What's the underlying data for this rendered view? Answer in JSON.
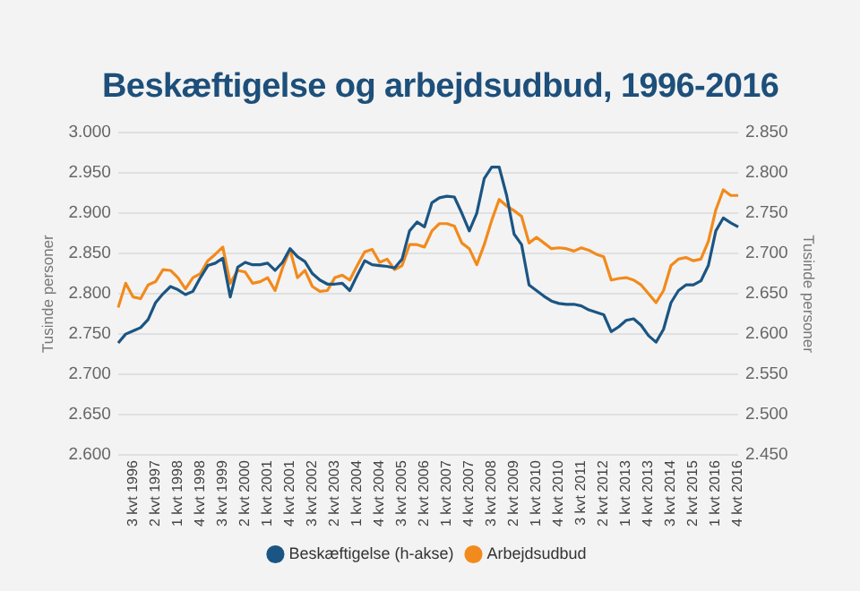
{
  "chart_data": {
    "type": "line",
    "title": "Beskæftigelse og arbejdsudbud, 1996-2016",
    "ylabel": "Tusinde personer",
    "y2label": "Tusinde personer",
    "categories": [
      null,
      null,
      "3 kvt 1996",
      null,
      null,
      "2 kvt 1997",
      null,
      null,
      "1 kvt 1998",
      null,
      null,
      "4 kvt 1998",
      null,
      null,
      "3 kvt 1999",
      null,
      null,
      "2 kvt 2000",
      null,
      null,
      "1 kvt 2001",
      null,
      null,
      "4 kvt 2001",
      null,
      null,
      "3 kvt 2002",
      null,
      null,
      "2 kvt 2003",
      null,
      null,
      "1 kvt 2004",
      null,
      null,
      "4 kvt 2004",
      null,
      null,
      "3 kvt 2005",
      null,
      null,
      "2 kvt 2006",
      null,
      null,
      "1 kvt 2007",
      null,
      null,
      "4 kvt 2007",
      null,
      null,
      "3 kvt 2008",
      null,
      null,
      "2 kvt 2009",
      null,
      null,
      "1 kvt 2010",
      null,
      null,
      "4 kvt 2010",
      null,
      null,
      "3 kvt 2011",
      null,
      null,
      "2 kvt 2012",
      null,
      null,
      "1 kvt 2013",
      null,
      null,
      "4 kvt 2013",
      null,
      null,
      "3 kvt 2014",
      null,
      null,
      "2 kvt 2015",
      null,
      null,
      "1 kvt 2016",
      null,
      null,
      "4 kvt 2016"
    ],
    "series": [
      {
        "name": "Beskæftigelse (h-akse)",
        "color": "#1b5583",
        "axis": "y2",
        "values": [
          2589,
          2600,
          2604,
          2608,
          2618,
          2639,
          2650,
          2659,
          2655,
          2649,
          2653,
          2670,
          2685,
          2688,
          2694,
          2646,
          2683,
          2689,
          2686,
          2686,
          2688,
          2679,
          2689,
          2706,
          2696,
          2690,
          2675,
          2667,
          2662,
          2662,
          2663,
          2654,
          2673,
          2691,
          2686,
          2685,
          2684,
          2682,
          2693,
          2728,
          2739,
          2733,
          2763,
          2769,
          2771,
          2770,
          2750,
          2728,
          2750,
          2793,
          2807,
          2807,
          2772,
          2724,
          2711,
          2661,
          2654,
          2647,
          2641,
          2638,
          2637,
          2637,
          2635,
          2630,
          2627,
          2624,
          2603,
          2609,
          2617,
          2619,
          2611,
          2598,
          2590,
          2606,
          2639,
          2654,
          2661,
          2661,
          2666,
          2685,
          2728,
          2744,
          2738,
          2733
        ]
      },
      {
        "name": "Arbejdsudbud",
        "color": "#f28a1c",
        "axis": "y",
        "values": [
          2783,
          2813,
          2796,
          2794,
          2811,
          2815,
          2830,
          2829,
          2820,
          2806,
          2820,
          2825,
          2841,
          2849,
          2858,
          2813,
          2829,
          2827,
          2813,
          2815,
          2820,
          2804,
          2832,
          2855,
          2820,
          2829,
          2809,
          2803,
          2804,
          2820,
          2823,
          2817,
          2835,
          2852,
          2855,
          2839,
          2843,
          2830,
          2835,
          2861,
          2861,
          2858,
          2878,
          2887,
          2887,
          2884,
          2863,
          2856,
          2836,
          2861,
          2891,
          2917,
          2909,
          2903,
          2896,
          2863,
          2870,
          2863,
          2856,
          2857,
          2856,
          2853,
          2857,
          2854,
          2849,
          2846,
          2817,
          2819,
          2820,
          2817,
          2811,
          2800,
          2789,
          2804,
          2835,
          2843,
          2845,
          2841,
          2843,
          2865,
          2904,
          2929,
          2922,
          2922
        ]
      }
    ],
    "ylim": [
      2600,
      3000
    ],
    "yticks": [
      {
        "value": 2600,
        "label": "2.600"
      },
      {
        "value": 2650,
        "label": "2.650"
      },
      {
        "value": 2700,
        "label": "2.700"
      },
      {
        "value": 2750,
        "label": "2.750"
      },
      {
        "value": 2800,
        "label": "2.800"
      },
      {
        "value": 2850,
        "label": "2.850"
      },
      {
        "value": 2900,
        "label": "2.900"
      },
      {
        "value": 2950,
        "label": "2.950"
      },
      {
        "value": 3000,
        "label": "3.000"
      }
    ],
    "y2lim": [
      2450,
      2850
    ],
    "y2ticks": [
      {
        "value": 2450,
        "label": "2.450"
      },
      {
        "value": 2500,
        "label": "2.500"
      },
      {
        "value": 2550,
        "label": "2.550"
      },
      {
        "value": 2600,
        "label": "2.600"
      },
      {
        "value": 2650,
        "label": "2.650"
      },
      {
        "value": 2700,
        "label": "2.700"
      },
      {
        "value": 2750,
        "label": "2.750"
      },
      {
        "value": 2800,
        "label": "2.800"
      },
      {
        "value": 2850,
        "label": "2.850"
      }
    ],
    "grid": "y",
    "legend": "bottom",
    "marker": "none",
    "line_style": "solid"
  }
}
